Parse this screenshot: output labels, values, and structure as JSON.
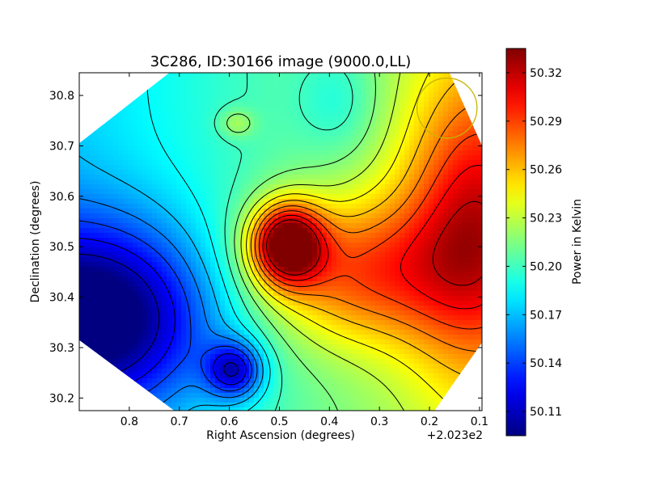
{
  "chart_data": {
    "type": "heatmap",
    "title": "3C286, ID:30166 image (9000.0,LL)",
    "xlabel": "Right Ascension (degrees)",
    "ylabel": "Declination (degrees)",
    "x_offset_label": "+2.023e2",
    "x_ticks": [
      "0.8",
      "0.7",
      "0.6",
      "0.5",
      "0.4",
      "0.3",
      "0.2",
      "0.1"
    ],
    "x_tick_values": [
      0.8,
      0.7,
      0.6,
      0.5,
      0.4,
      0.3,
      0.2,
      0.1
    ],
    "xlim": [
      0.9,
      0.095
    ],
    "y_ticks": [
      "30.2",
      "30.3",
      "30.4",
      "30.5",
      "30.6",
      "30.7",
      "30.8"
    ],
    "y_tick_values": [
      30.2,
      30.3,
      30.4,
      30.5,
      30.6,
      30.7,
      30.8
    ],
    "ylim": [
      30.175,
      30.845
    ],
    "colorbar": {
      "label": "Power in Kelvin",
      "ticks": [
        "50.11",
        "50.14",
        "50.17",
        "50.20",
        "50.23",
        "50.26",
        "50.29",
        "50.32"
      ],
      "tick_values": [
        50.11,
        50.14,
        50.17,
        50.2,
        50.23,
        50.26,
        50.29,
        50.32
      ],
      "range": [
        50.095,
        50.335
      ],
      "colormap": "jet"
    },
    "field_sources": [
      {
        "x": 0.485,
        "y": 30.505,
        "peak": 50.335,
        "sigma_x": 0.05,
        "sigma_y": 0.055
      },
      {
        "x": 0.87,
        "y": 30.36,
        "peak": 50.1,
        "sigma_x": 0.17,
        "sigma_y": 0.13
      },
      {
        "x": 0.11,
        "y": 30.55,
        "peak": 50.285,
        "sigma_x": 0.1,
        "sigma_y": 0.2
      },
      {
        "x": 0.38,
        "y": 30.79,
        "peak": 50.185,
        "sigma_x": 0.06,
        "sigma_y": 0.08
      },
      {
        "x": 0.59,
        "y": 30.255,
        "peak": 50.13,
        "sigma_x": 0.04,
        "sigma_y": 0.04
      },
      {
        "x": 0.585,
        "y": 30.745,
        "peak": 50.23,
        "sigma_x": 0.025,
        "sigma_y": 0.02
      },
      {
        "x": 0.35,
        "y": 30.45,
        "peak": 50.275,
        "sigma_x": 0.15,
        "sigma_y": 0.1
      }
    ],
    "contour_levels": [
      50.11,
      50.125,
      50.14,
      50.155,
      50.17,
      50.185,
      50.2,
      50.215,
      50.23,
      50.245,
      50.26,
      50.275,
      50.29,
      50.305,
      50.32
    ],
    "beam_circle": {
      "x": 0.165,
      "y": 30.775,
      "radius_deg": 0.06,
      "color": "#c8b400"
    },
    "valid_region_corners": [
      {
        "x": 0.9,
        "y": 30.315
      },
      {
        "x": 0.9,
        "y": 30.705
      },
      {
        "x": 0.72,
        "y": 30.845
      },
      {
        "x": 0.16,
        "y": 30.845
      },
      {
        "x": 0.095,
        "y": 30.7
      },
      {
        "x": 0.095,
        "y": 30.31
      },
      {
        "x": 0.19,
        "y": 30.175
      },
      {
        "x": 0.71,
        "y": 30.175
      }
    ]
  }
}
